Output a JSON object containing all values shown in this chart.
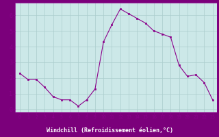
{
  "x": [
    0,
    1,
    2,
    3,
    4,
    5,
    6,
    7,
    8,
    9,
    10,
    11,
    12,
    13,
    14,
    15,
    16,
    17,
    18,
    19,
    20,
    21,
    22,
    23
  ],
  "y": [
    2.3,
    1.9,
    1.9,
    1.4,
    0.8,
    0.6,
    0.6,
    0.2,
    0.6,
    1.3,
    4.3,
    5.4,
    6.4,
    6.1,
    5.8,
    5.5,
    5.0,
    4.8,
    4.6,
    2.8,
    2.1,
    2.2,
    1.7,
    0.6
  ],
  "line_color": "#8b008b",
  "marker": "s",
  "marker_size": 2,
  "bg_color": "#cce8e8",
  "grid_color": "#aacccc",
  "xlabel": "Windchill (Refroidissement éolien,°C)",
  "xlabel_bg": "#7b007b",
  "xlabel_fg": "#ffffff",
  "xlim": [
    -0.5,
    23.5
  ],
  "ylim": [
    -0.2,
    6.8
  ],
  "xticks": [
    0,
    1,
    2,
    3,
    4,
    5,
    6,
    7,
    8,
    9,
    10,
    11,
    12,
    13,
    14,
    15,
    16,
    17,
    18,
    19,
    20,
    21,
    22,
    23
  ],
  "yticks": [
    0,
    1,
    2,
    3,
    4,
    5,
    6
  ],
  "tick_color": "#8b008b",
  "axis_color": "#8b008b",
  "figsize": [
    3.2,
    2.0
  ],
  "dpi": 100
}
